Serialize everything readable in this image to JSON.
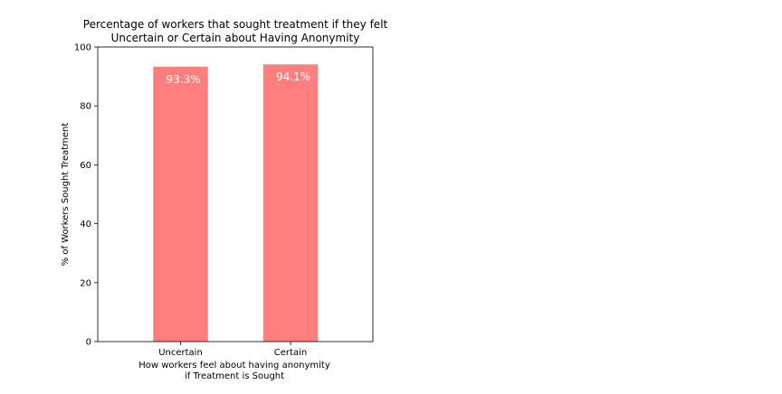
{
  "chart_data": {
    "type": "bar",
    "title": "Percentage of workers that sought treatment if they felt\nUncertain or Certain about Having Anonymity",
    "xlabel": "How workers feel about having anonymity\nif Treatment is Sought",
    "ylabel": "% of Workers Sought Treatment",
    "categories": [
      "Uncertain",
      "Certain"
    ],
    "values": [
      93.3,
      94.1
    ],
    "data_labels": [
      "93.3%",
      "94.1%"
    ],
    "ylim": [
      0,
      100
    ],
    "yticks": [
      0,
      20,
      40,
      60,
      80,
      100
    ],
    "ytick_labels": [
      "0",
      "20",
      "40",
      "60",
      "80",
      "100"
    ],
    "grid": false,
    "bar_color": "#ff7f7f",
    "data_label_color": "#ffffff"
  }
}
